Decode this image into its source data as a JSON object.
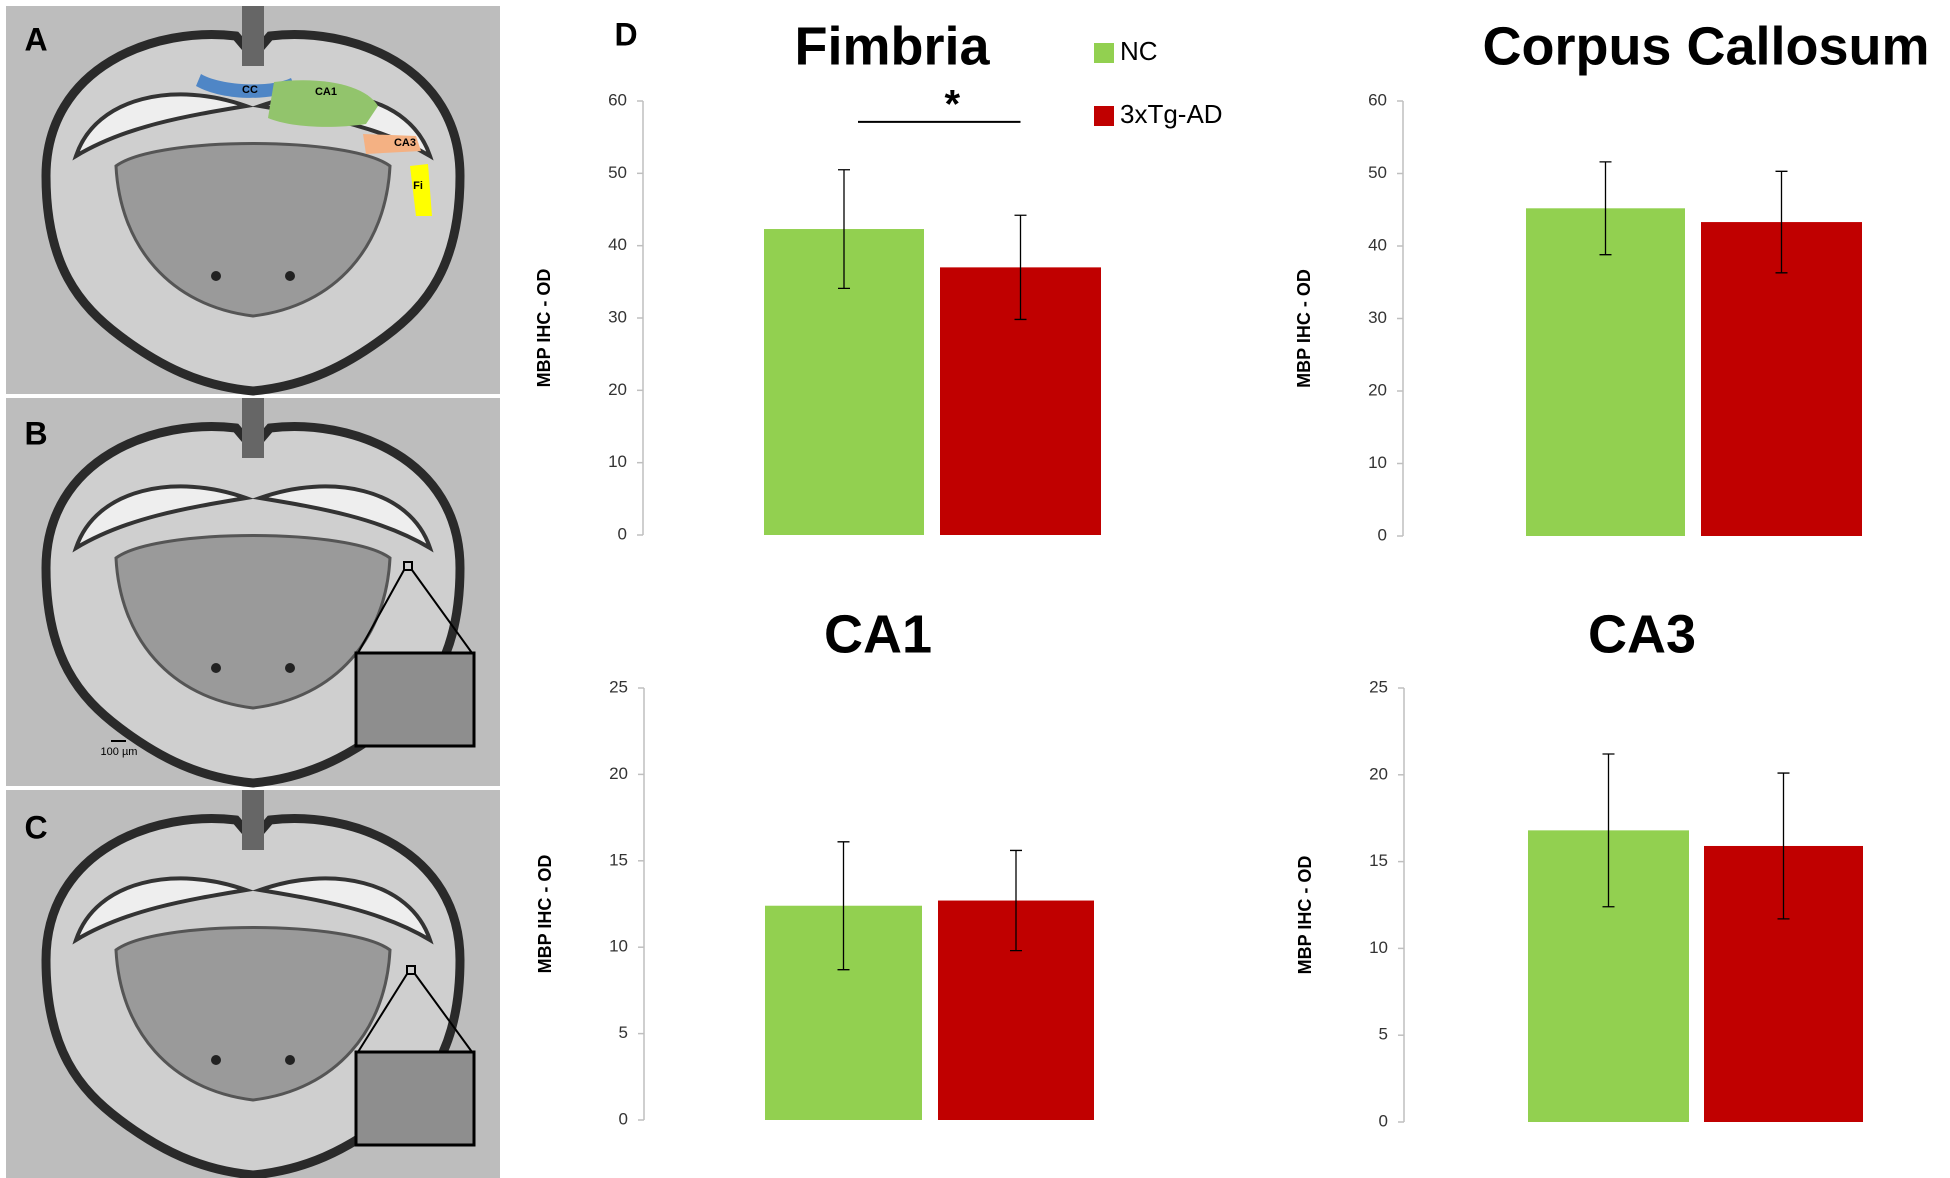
{
  "image_panels": {
    "labels": [
      "A",
      "B",
      "C"
    ],
    "regions": [
      "CC",
      "CA1",
      "CA3",
      "Fi"
    ],
    "scale_bar": "100 µm"
  },
  "chart_data": [
    {
      "type": "bar",
      "title": "Fimbria",
      "panel_label": "D",
      "ylabel": "MBP  IHC - OD",
      "annotation": "*",
      "ylim": [
        0,
        60
      ],
      "yticks": [
        0,
        10,
        20,
        30,
        40,
        50,
        60
      ],
      "series": [
        {
          "name": "NC",
          "color": "#92d050",
          "values": [
            42.3
          ],
          "errors": [
            8.2
          ]
        },
        {
          "name": "3xTg-AD",
          "color": "#c00000",
          "values": [
            37
          ],
          "errors": [
            7.2
          ]
        }
      ]
    },
    {
      "type": "bar",
      "title": "Corpus Callosum",
      "ylabel": "MBP  IHC - OD",
      "ylim": [
        0,
        60
      ],
      "yticks": [
        0,
        10,
        20,
        30,
        40,
        50,
        60
      ],
      "series": [
        {
          "color": "#92d050",
          "values": [
            45.2
          ],
          "errors": [
            6.4
          ]
        },
        {
          "color": "#c00000",
          "values": [
            43.3
          ],
          "errors": [
            7
          ]
        }
      ]
    },
    {
      "type": "bar",
      "title": "CA1",
      "ylabel": "MBP  IHC - OD",
      "ylim": [
        0,
        25
      ],
      "yticks": [
        0,
        5,
        10,
        15,
        20,
        25
      ],
      "series": [
        {
          "color": "#92d050",
          "values": [
            12.4
          ],
          "errors": [
            3.7
          ]
        },
        {
          "color": "#c00000",
          "values": [
            12.7
          ],
          "errors": [
            2.9
          ]
        }
      ]
    },
    {
      "type": "bar",
      "title": "CA3",
      "ylabel": "MBP  IHC - OD",
      "ylim": [
        0,
        25
      ],
      "yticks": [
        0,
        5,
        10,
        15,
        20,
        25
      ],
      "series": [
        {
          "color": "#92d050",
          "values": [
            16.8
          ],
          "errors": [
            4.4
          ]
        },
        {
          "color": "#c00000",
          "values": [
            15.9
          ],
          "errors": [
            4.2
          ]
        }
      ]
    }
  ]
}
